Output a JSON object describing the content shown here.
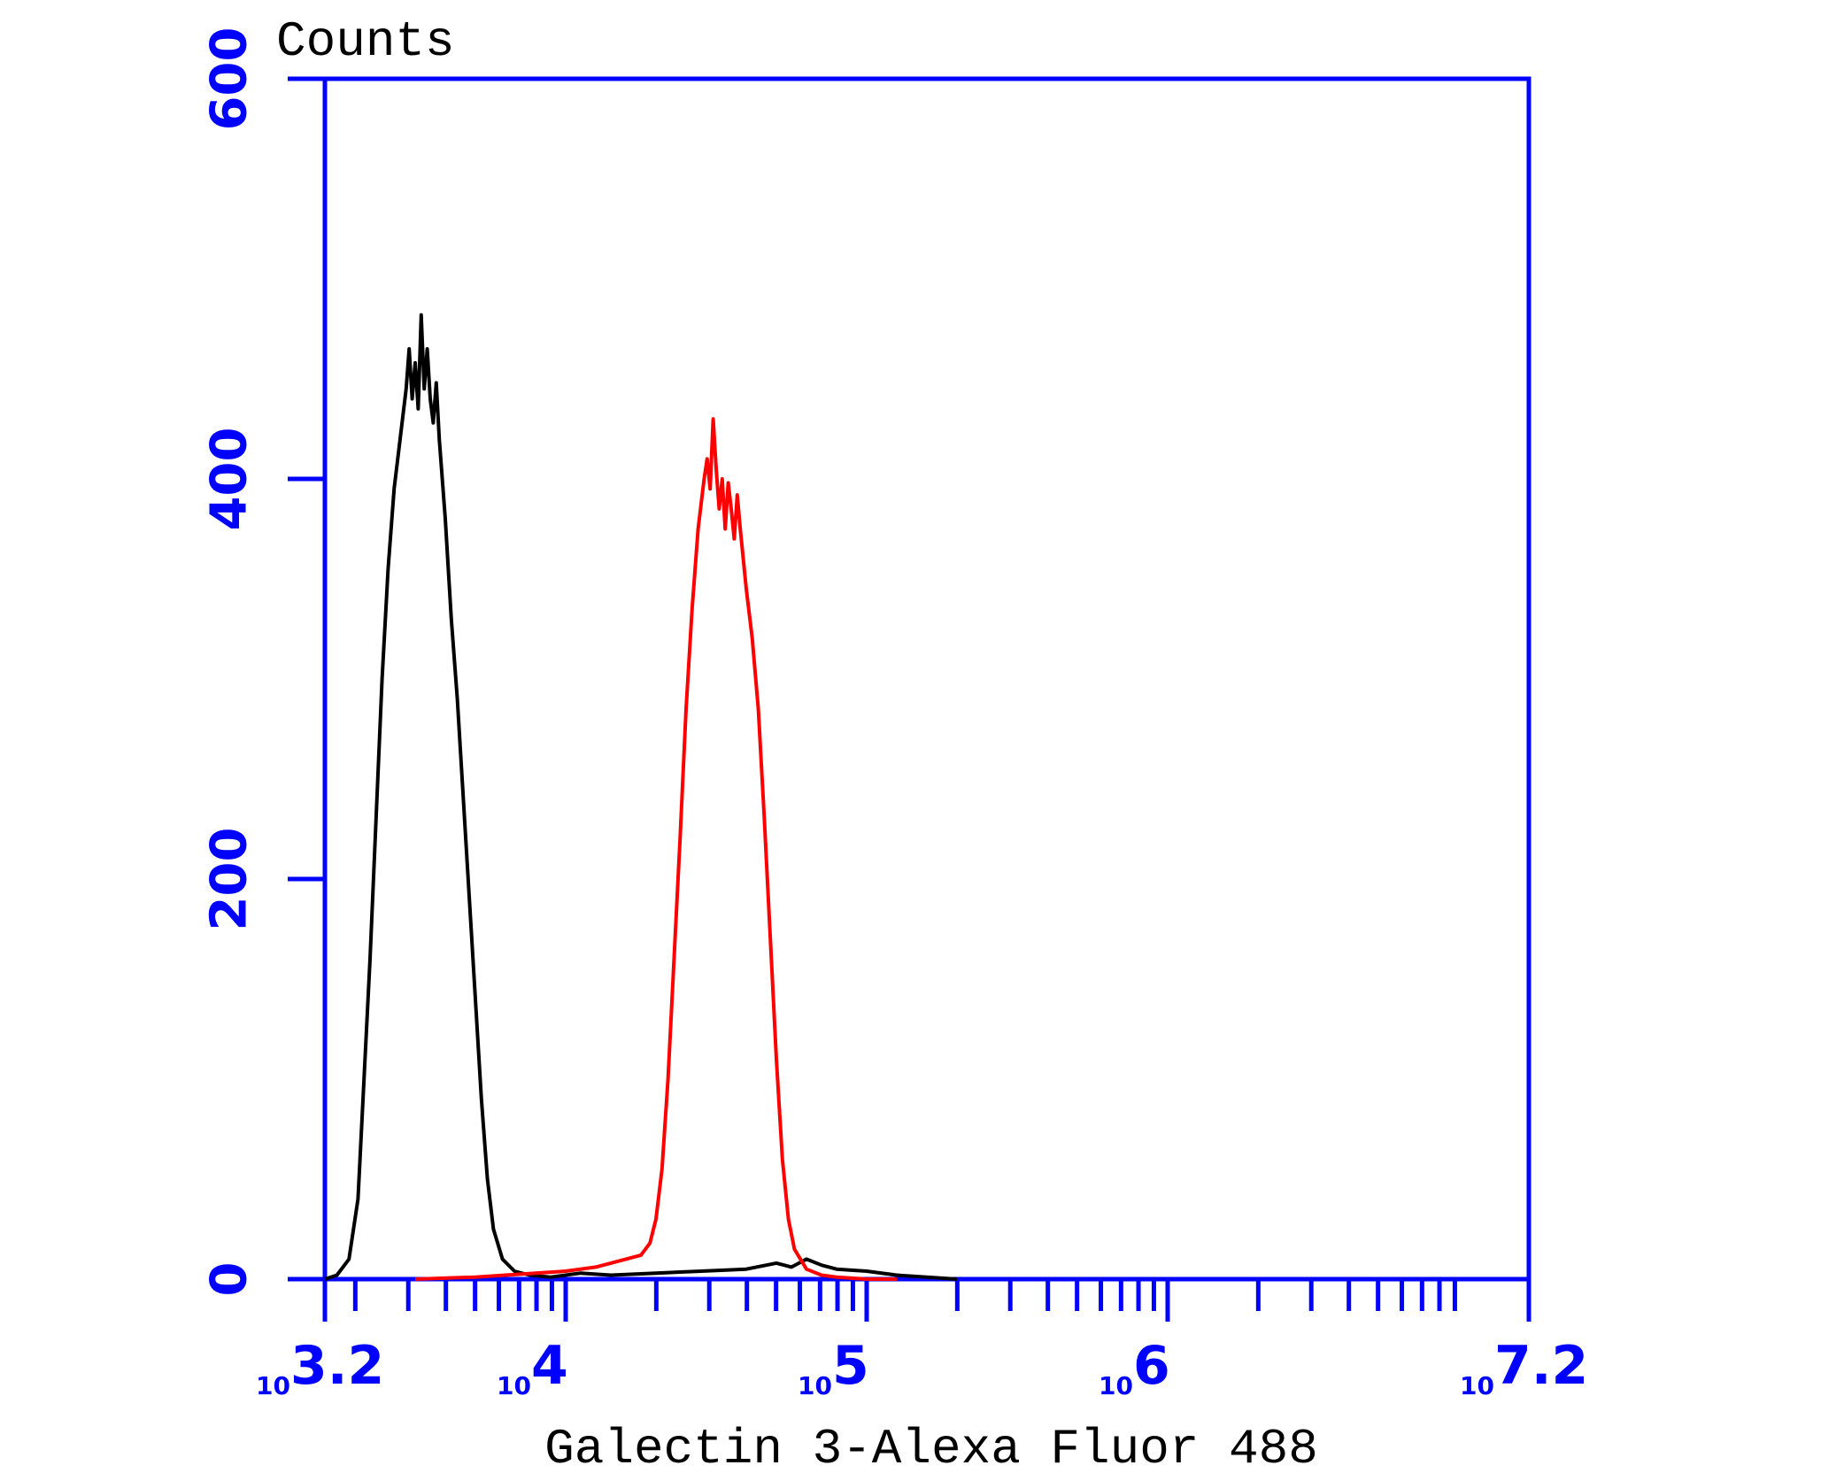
{
  "chart_data": {
    "type": "line",
    "title": "",
    "xlabel": "Galectin 3-Alexa Fluor 488",
    "ylabel": "Counts",
    "x_scale": "log10",
    "xlim": [
      3.2,
      7.2
    ],
    "ylim": [
      0,
      600
    ],
    "y_ticks": [
      {
        "value": 0,
        "label": "0"
      },
      {
        "value": 200,
        "label": "200"
      },
      {
        "value": 400,
        "label": "400"
      },
      {
        "value": 600,
        "label": "600"
      }
    ],
    "x_ticks": [
      {
        "value": 3.2,
        "base": "10",
        "exp": "3.2"
      },
      {
        "value": 4,
        "base": "10",
        "exp": "4"
      },
      {
        "value": 5,
        "base": "10",
        "exp": "5"
      },
      {
        "value": 6,
        "base": "10",
        "exp": "6"
      },
      {
        "value": 7.2,
        "base": "10",
        "exp": "7.2"
      }
    ],
    "axis_color": "#0000ff",
    "grid": false,
    "legend": "none",
    "series": [
      {
        "color": "#000000",
        "points": [
          [
            3.2,
            0
          ],
          [
            3.24,
            2
          ],
          [
            3.28,
            10
          ],
          [
            3.31,
            40
          ],
          [
            3.33,
            100
          ],
          [
            3.35,
            160
          ],
          [
            3.37,
            230
          ],
          [
            3.39,
            300
          ],
          [
            3.41,
            355
          ],
          [
            3.43,
            395
          ],
          [
            3.45,
            420
          ],
          [
            3.47,
            445
          ],
          [
            3.48,
            465
          ],
          [
            3.49,
            440
          ],
          [
            3.5,
            458
          ],
          [
            3.51,
            435
          ],
          [
            3.52,
            482
          ],
          [
            3.53,
            445
          ],
          [
            3.54,
            465
          ],
          [
            3.55,
            440
          ],
          [
            3.56,
            428
          ],
          [
            3.57,
            448
          ],
          [
            3.58,
            420
          ],
          [
            3.6,
            380
          ],
          [
            3.62,
            330
          ],
          [
            3.64,
            290
          ],
          [
            3.66,
            240
          ],
          [
            3.68,
            190
          ],
          [
            3.7,
            140
          ],
          [
            3.72,
            90
          ],
          [
            3.74,
            50
          ],
          [
            3.76,
            25
          ],
          [
            3.79,
            10
          ],
          [
            3.83,
            4
          ],
          [
            3.88,
            2
          ],
          [
            3.95,
            1
          ],
          [
            4.05,
            3
          ],
          [
            4.15,
            2
          ],
          [
            4.3,
            3
          ],
          [
            4.45,
            4
          ],
          [
            4.6,
            5
          ],
          [
            4.7,
            8
          ],
          [
            4.75,
            6
          ],
          [
            4.8,
            10
          ],
          [
            4.85,
            7
          ],
          [
            4.9,
            5
          ],
          [
            5.0,
            4
          ],
          [
            5.1,
            2
          ],
          [
            5.2,
            1
          ],
          [
            5.3,
            0
          ]
        ]
      },
      {
        "color": "#ff0000",
        "points": [
          [
            3.5,
            0
          ],
          [
            3.7,
            1
          ],
          [
            3.9,
            3
          ],
          [
            4.0,
            4
          ],
          [
            4.1,
            6
          ],
          [
            4.15,
            8
          ],
          [
            4.2,
            10
          ],
          [
            4.25,
            12
          ],
          [
            4.28,
            18
          ],
          [
            4.3,
            30
          ],
          [
            4.32,
            55
          ],
          [
            4.34,
            100
          ],
          [
            4.36,
            160
          ],
          [
            4.38,
            220
          ],
          [
            4.4,
            285
          ],
          [
            4.42,
            335
          ],
          [
            4.44,
            375
          ],
          [
            4.46,
            400
          ],
          [
            4.47,
            410
          ],
          [
            4.48,
            395
          ],
          [
            4.49,
            430
          ],
          [
            4.5,
            405
          ],
          [
            4.51,
            385
          ],
          [
            4.52,
            400
          ],
          [
            4.53,
            375
          ],
          [
            4.54,
            398
          ],
          [
            4.55,
            385
          ],
          [
            4.56,
            370
          ],
          [
            4.57,
            392
          ],
          [
            4.58,
            375
          ],
          [
            4.59,
            360
          ],
          [
            4.6,
            345
          ],
          [
            4.62,
            320
          ],
          [
            4.64,
            285
          ],
          [
            4.66,
            230
          ],
          [
            4.68,
            170
          ],
          [
            4.7,
            110
          ],
          [
            4.72,
            60
          ],
          [
            4.74,
            30
          ],
          [
            4.76,
            15
          ],
          [
            4.8,
            5
          ],
          [
            4.85,
            2
          ],
          [
            4.9,
            1
          ],
          [
            5.0,
            0
          ],
          [
            5.1,
            0
          ]
        ]
      }
    ]
  }
}
